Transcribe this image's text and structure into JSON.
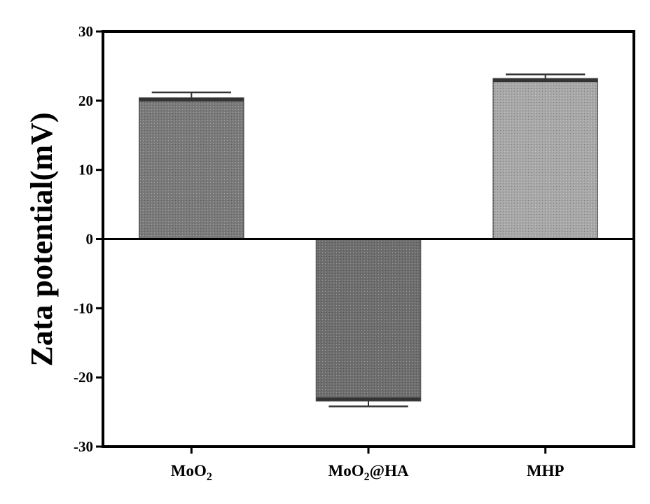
{
  "chart_data": {
    "type": "bar",
    "title": "",
    "xlabel": "",
    "ylabel": "Zata potential(mV)",
    "ylim": [
      -30,
      30
    ],
    "yticks": [
      "30",
      "20",
      "10",
      "0",
      "-10",
      "-20",
      "-30"
    ],
    "categories": [
      {
        "base": "MoO",
        "sub": "2",
        "suffix": ""
      },
      {
        "base": "MoO",
        "sub": "2",
        "suffix": "@HA"
      },
      {
        "base": "MHP",
        "sub": "",
        "suffix": ""
      }
    ],
    "values": [
      20.4,
      -23.4,
      23.2
    ],
    "errors": [
      0.8,
      0.8,
      0.6
    ],
    "grid": false,
    "legend": "none",
    "bar_colors": [
      "#7a7a7a",
      "#6e6e6e",
      "#a8a8a8"
    ],
    "axis_color": "#000000"
  }
}
